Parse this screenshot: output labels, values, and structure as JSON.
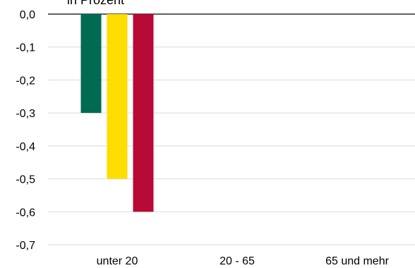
{
  "chart_data": {
    "type": "bar",
    "title": "",
    "unit_label": "in Prozent",
    "categories": [
      "unter 20",
      "20 - 65",
      "65 und mehr"
    ],
    "series": [
      {
        "color": "#006a52",
        "values": [
          -0.3,
          0,
          0
        ]
      },
      {
        "color": "#ffdd00",
        "values": [
          -0.5,
          0,
          0
        ]
      },
      {
        "color": "#b70a36",
        "values": [
          -0.6,
          0,
          0
        ]
      }
    ],
    "ylim": [
      -0.7,
      0.0
    ],
    "yticks": [
      0.0,
      -0.1,
      -0.2,
      -0.3,
      -0.4,
      -0.5,
      -0.6,
      -0.7
    ],
    "ytick_labels": [
      "0,0",
      "-0,1",
      "-0,2",
      "-0,3",
      "-0,4",
      "-0,5",
      "-0,6",
      "-0,7"
    ],
    "grid": true,
    "legend": "none"
  }
}
